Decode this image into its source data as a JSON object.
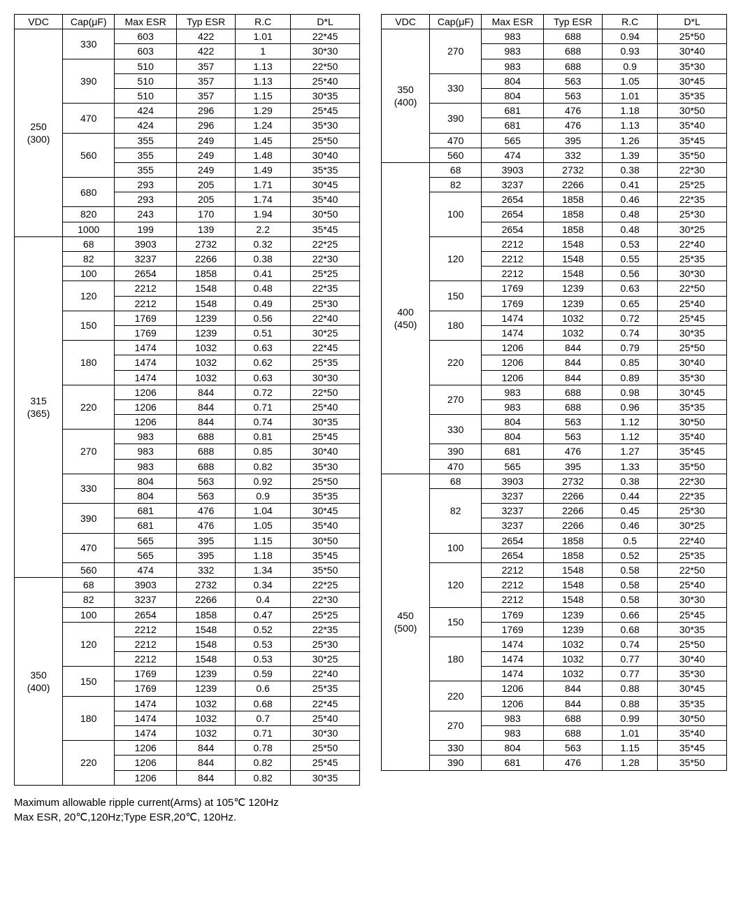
{
  "headers": [
    "VDC",
    "Cap(μF)",
    "Max ESR",
    "Typ ESR",
    "R.C",
    "D*L"
  ],
  "footnote1": "Maximum allowable ripple current(Arms) at 105℃ 120Hz",
  "footnote2": "Max ESR, 20℃,120Hz;Type ESR,20℃, 120Hz.",
  "left": [
    {
      "vdc": "250\n(300)",
      "groups": [
        {
          "cap": "330",
          "rows": [
            [
              "603",
              "422",
              "1.01",
              "22*45"
            ],
            [
              "603",
              "422",
              "1",
              "30*30"
            ]
          ]
        },
        {
          "cap": "390",
          "rows": [
            [
              "510",
              "357",
              "1.13",
              "22*50"
            ],
            [
              "510",
              "357",
              "1.13",
              "25*40"
            ],
            [
              "510",
              "357",
              "1.15",
              "30*35"
            ]
          ]
        },
        {
          "cap": "470",
          "rows": [
            [
              "424",
              "296",
              "1.29",
              "25*45"
            ],
            [
              "424",
              "296",
              "1.24",
              "35*30"
            ]
          ]
        },
        {
          "cap": "560",
          "rows": [
            [
              "355",
              "249",
              "1.45",
              "25*50"
            ],
            [
              "355",
              "249",
              "1.48",
              "30*40"
            ],
            [
              "355",
              "249",
              "1.49",
              "35*35"
            ]
          ]
        },
        {
          "cap": "680",
          "rows": [
            [
              "293",
              "205",
              "1.71",
              "30*45"
            ],
            [
              "293",
              "205",
              "1.74",
              "35*40"
            ]
          ]
        },
        {
          "cap": "820",
          "rows": [
            [
              "243",
              "170",
              "1.94",
              "30*50"
            ]
          ]
        },
        {
          "cap": "1000",
          "rows": [
            [
              "199",
              "139",
              "2.2",
              "35*45"
            ]
          ]
        }
      ]
    },
    {
      "vdc": "315\n(365)",
      "groups": [
        {
          "cap": "68",
          "rows": [
            [
              "3903",
              "2732",
              "0.32",
              "22*25"
            ]
          ]
        },
        {
          "cap": "82",
          "rows": [
            [
              "3237",
              "2266",
              "0.38",
              "22*30"
            ]
          ]
        },
        {
          "cap": "100",
          "rows": [
            [
              "2654",
              "1858",
              "0.41",
              "25*25"
            ]
          ]
        },
        {
          "cap": "120",
          "rows": [
            [
              "2212",
              "1548",
              "0.48",
              "22*35"
            ],
            [
              "2212",
              "1548",
              "0.49",
              "25*30"
            ]
          ]
        },
        {
          "cap": "150",
          "rows": [
            [
              "1769",
              "1239",
              "0.56",
              "22*40"
            ],
            [
              "1769",
              "1239",
              "0.51",
              "30*25"
            ]
          ]
        },
        {
          "cap": "180",
          "rows": [
            [
              "1474",
              "1032",
              "0.63",
              "22*45"
            ],
            [
              "1474",
              "1032",
              "0.62",
              "25*35"
            ],
            [
              "1474",
              "1032",
              "0.63",
              "30*30"
            ]
          ]
        },
        {
          "cap": "220",
          "rows": [
            [
              "1206",
              "844",
              "0.72",
              "22*50"
            ],
            [
              "1206",
              "844",
              "0.71",
              "25*40"
            ],
            [
              "1206",
              "844",
              "0.74",
              "30*35"
            ]
          ]
        },
        {
          "cap": "270",
          "rows": [
            [
              "983",
              "688",
              "0.81",
              "25*45"
            ],
            [
              "983",
              "688",
              "0.85",
              "30*40"
            ],
            [
              "983",
              "688",
              "0.82",
              "35*30"
            ]
          ]
        },
        {
          "cap": "330",
          "rows": [
            [
              "804",
              "563",
              "0.92",
              "25*50"
            ],
            [
              "804",
              "563",
              "0.9",
              "35*35"
            ]
          ]
        },
        {
          "cap": "390",
          "rows": [
            [
              "681",
              "476",
              "1.04",
              "30*45"
            ],
            [
              "681",
              "476",
              "1.05",
              "35*40"
            ]
          ]
        },
        {
          "cap": "470",
          "rows": [
            [
              "565",
              "395",
              "1.15",
              "30*50"
            ],
            [
              "565",
              "395",
              "1.18",
              "35*45"
            ]
          ]
        },
        {
          "cap": "560",
          "rows": [
            [
              "474",
              "332",
              "1.34",
              "35*50"
            ]
          ]
        }
      ]
    },
    {
      "vdc": "350\n(400)",
      "groups": [
        {
          "cap": "68",
          "rows": [
            [
              "3903",
              "2732",
              "0.34",
              "22*25"
            ]
          ]
        },
        {
          "cap": "82",
          "rows": [
            [
              "3237",
              "2266",
              "0.4",
              "22*30"
            ]
          ]
        },
        {
          "cap": "100",
          "rows": [
            [
              "2654",
              "1858",
              "0.47",
              "25*25"
            ]
          ]
        },
        {
          "cap": "120",
          "rows": [
            [
              "2212",
              "1548",
              "0.52",
              "22*35"
            ],
            [
              "2212",
              "1548",
              "0.53",
              "25*30"
            ],
            [
              "2212",
              "1548",
              "0.53",
              "30*25"
            ]
          ]
        },
        {
          "cap": "150",
          "rows": [
            [
              "1769",
              "1239",
              "0.59",
              "22*40"
            ],
            [
              "1769",
              "1239",
              "0.6",
              "25*35"
            ]
          ]
        },
        {
          "cap": "180",
          "rows": [
            [
              "1474",
              "1032",
              "0.68",
              "22*45"
            ],
            [
              "1474",
              "1032",
              "0.7",
              "25*40"
            ],
            [
              "1474",
              "1032",
              "0.71",
              "30*30"
            ]
          ]
        },
        {
          "cap": "220",
          "rows": [
            [
              "1206",
              "844",
              "0.78",
              "25*50"
            ],
            [
              "1206",
              "844",
              "0.82",
              "25*45"
            ],
            [
              "1206",
              "844",
              "0.82",
              "30*35"
            ]
          ]
        }
      ]
    }
  ],
  "right": [
    {
      "vdc": "350\n(400)",
      "groups": [
        {
          "cap": "270",
          "rows": [
            [
              "983",
              "688",
              "0.94",
              "25*50"
            ],
            [
              "983",
              "688",
              "0.93",
              "30*40"
            ],
            [
              "983",
              "688",
              "0.9",
              "35*30"
            ]
          ]
        },
        {
          "cap": "330",
          "rows": [
            [
              "804",
              "563",
              "1.05",
              "30*45"
            ],
            [
              "804",
              "563",
              "1.01",
              "35*35"
            ]
          ]
        },
        {
          "cap": "390",
          "rows": [
            [
              "681",
              "476",
              "1.18",
              "30*50"
            ],
            [
              "681",
              "476",
              "1.13",
              "35*40"
            ]
          ]
        },
        {
          "cap": "470",
          "rows": [
            [
              "565",
              "395",
              "1.26",
              "35*45"
            ]
          ]
        },
        {
          "cap": "560",
          "rows": [
            [
              "474",
              "332",
              "1.39",
              "35*50"
            ]
          ]
        }
      ]
    },
    {
      "vdc": "400\n(450)",
      "groups": [
        {
          "cap": "68",
          "rows": [
            [
              "3903",
              "2732",
              "0.38",
              "22*30"
            ]
          ]
        },
        {
          "cap": "82",
          "rows": [
            [
              "3237",
              "2266",
              "0.41",
              "25*25"
            ]
          ]
        },
        {
          "cap": "100",
          "rows": [
            [
              "2654",
              "1858",
              "0.46",
              "22*35"
            ],
            [
              "2654",
              "1858",
              "0.48",
              "25*30"
            ],
            [
              "2654",
              "1858",
              "0.48",
              "30*25"
            ]
          ]
        },
        {
          "cap": "120",
          "rows": [
            [
              "2212",
              "1548",
              "0.53",
              "22*40"
            ],
            [
              "2212",
              "1548",
              "0.55",
              "25*35"
            ],
            [
              "2212",
              "1548",
              "0.56",
              "30*30"
            ]
          ]
        },
        {
          "cap": "150",
          "rows": [
            [
              "1769",
              "1239",
              "0.63",
              "22*50"
            ],
            [
              "1769",
              "1239",
              "0.65",
              "25*40"
            ]
          ]
        },
        {
          "cap": "180",
          "rows": [
            [
              "1474",
              "1032",
              "0.72",
              "25*45"
            ],
            [
              "1474",
              "1032",
              "0.74",
              "30*35"
            ]
          ]
        },
        {
          "cap": "220",
          "rows": [
            [
              "1206",
              "844",
              "0.79",
              "25*50"
            ],
            [
              "1206",
              "844",
              "0.85",
              "30*40"
            ],
            [
              "1206",
              "844",
              "0.89",
              "35*30"
            ]
          ]
        },
        {
          "cap": "270",
          "rows": [
            [
              "983",
              "688",
              "0.98",
              "30*45"
            ],
            [
              "983",
              "688",
              "0.96",
              "35*35"
            ]
          ]
        },
        {
          "cap": "330",
          "rows": [
            [
              "804",
              "563",
              "1.12",
              "30*50"
            ],
            [
              "804",
              "563",
              "1.12",
              "35*40"
            ]
          ]
        },
        {
          "cap": "390",
          "rows": [
            [
              "681",
              "476",
              "1.27",
              "35*45"
            ]
          ]
        },
        {
          "cap": "470",
          "rows": [
            [
              "565",
              "395",
              "1.33",
              "35*50"
            ]
          ]
        }
      ]
    },
    {
      "vdc": "450\n(500)",
      "groups": [
        {
          "cap": "68",
          "rows": [
            [
              "3903",
              "2732",
              "0.38",
              "22*30"
            ]
          ]
        },
        {
          "cap": "82",
          "rows": [
            [
              "3237",
              "2266",
              "0.44",
              "22*35"
            ],
            [
              "3237",
              "2266",
              "0.45",
              "25*30"
            ],
            [
              "3237",
              "2266",
              "0.46",
              "30*25"
            ]
          ]
        },
        {
          "cap": "100",
          "rows": [
            [
              "2654",
              "1858",
              "0.5",
              "22*40"
            ],
            [
              "2654",
              "1858",
              "0.52",
              "25*35"
            ]
          ]
        },
        {
          "cap": "120",
          "rows": [
            [
              "2212",
              "1548",
              "0.58",
              "22*50"
            ],
            [
              "2212",
              "1548",
              "0.58",
              "25*40"
            ],
            [
              "2212",
              "1548",
              "0.58",
              "30*30"
            ]
          ]
        },
        {
          "cap": "150",
          "rows": [
            [
              "1769",
              "1239",
              "0.66",
              "25*45"
            ],
            [
              "1769",
              "1239",
              "0.68",
              "30*35"
            ]
          ]
        },
        {
          "cap": "180",
          "rows": [
            [
              "1474",
              "1032",
              "0.74",
              "25*50"
            ],
            [
              "1474",
              "1032",
              "0.77",
              "30*40"
            ],
            [
              "1474",
              "1032",
              "0.77",
              "35*30"
            ]
          ]
        },
        {
          "cap": "220",
          "rows": [
            [
              "1206",
              "844",
              "0.88",
              "30*45"
            ],
            [
              "1206",
              "844",
              "0.88",
              "35*35"
            ]
          ]
        },
        {
          "cap": "270",
          "rows": [
            [
              "983",
              "688",
              "0.99",
              "30*50"
            ],
            [
              "983",
              "688",
              "1.01",
              "35*40"
            ]
          ]
        },
        {
          "cap": "330",
          "rows": [
            [
              "804",
              "563",
              "1.15",
              "35*45"
            ]
          ]
        },
        {
          "cap": "390",
          "rows": [
            [
              "681",
              "476",
              "1.28",
              "35*50"
            ]
          ]
        }
      ]
    }
  ]
}
